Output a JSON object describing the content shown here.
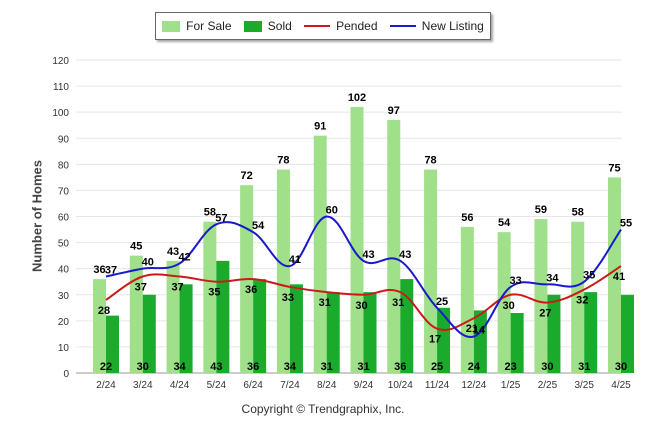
{
  "legend": {
    "for_sale": "For Sale",
    "sold": "Sold",
    "pended": "Pended",
    "new_listing": "New Listing"
  },
  "copyright": "Copyright © Trendgraphix, Inc.",
  "colors": {
    "for_sale": "#a0e08a",
    "sold": "#1aaa2c",
    "pended": "#cc1a1a",
    "new_listing": "#1a1acc",
    "grid": "#e6e6e6"
  },
  "chart_data": {
    "type": "bar",
    "title": "",
    "xlabel": "",
    "ylabel": "Number of Homes",
    "ylim": [
      0,
      120
    ],
    "yticks": [
      0,
      10,
      20,
      30,
      40,
      50,
      60,
      70,
      80,
      90,
      100,
      110,
      120
    ],
    "grid": true,
    "legend_position": "top-center",
    "categories": [
      "2/24",
      "3/24",
      "4/24",
      "5/24",
      "6/24",
      "7/24",
      "8/24",
      "9/24",
      "10/24",
      "11/24",
      "12/24",
      "1/25",
      "2/25",
      "3/25",
      "4/25"
    ],
    "series": [
      {
        "name": "For Sale",
        "type": "bar",
        "values": [
          36,
          45,
          43,
          58,
          72,
          78,
          91,
          102,
          97,
          78,
          56,
          54,
          59,
          58,
          75
        ]
      },
      {
        "name": "Sold",
        "type": "bar",
        "values": [
          22,
          30,
          34,
          43,
          36,
          34,
          31,
          31,
          36,
          25,
          24,
          23,
          30,
          31,
          30
        ]
      },
      {
        "name": "Pended",
        "type": "line",
        "values": [
          28,
          37,
          37,
          35,
          36,
          33,
          31,
          30,
          31,
          17,
          21,
          30,
          27,
          32,
          41
        ]
      },
      {
        "name": "New Listing",
        "type": "line",
        "values": [
          37,
          40,
          42,
          57,
          54,
          41,
          60,
          43,
          43,
          25,
          14,
          33,
          34,
          35,
          55
        ]
      }
    ]
  }
}
